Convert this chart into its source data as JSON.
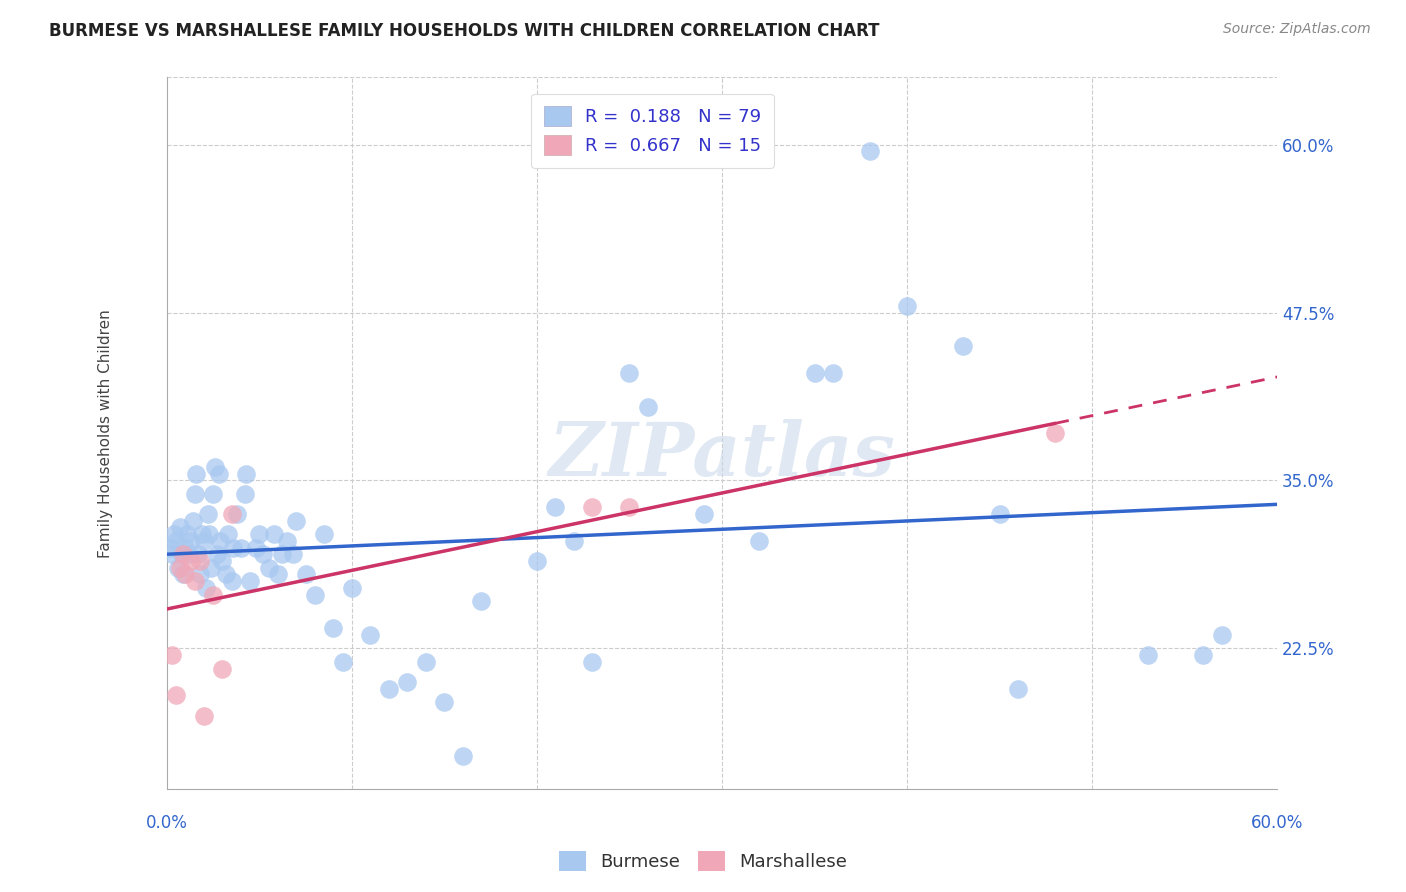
{
  "title": "BURMESE VS MARSHALLESE FAMILY HOUSEHOLDS WITH CHILDREN CORRELATION CHART",
  "source": "Source: ZipAtlas.com",
  "ylabel": "Family Households with Children",
  "watermark": "ZIPatlas",
  "burmese_R": 0.188,
  "burmese_N": 79,
  "marshallese_R": 0.667,
  "marshallese_N": 15,
  "burmese_color": "#a8c8f0",
  "marshallese_color": "#f0a8b8",
  "line_blue": "#3366cc",
  "line_pink": "#cc3366",
  "legend_label_color": "#3333cc",
  "yticks": [
    "22.5%",
    "35.0%",
    "47.5%",
    "60.0%"
  ],
  "ytick_vals": [
    0.225,
    0.35,
    0.475,
    0.6
  ],
  "xlim": [
    0.0,
    0.6
  ],
  "ylim": [
    0.12,
    0.65
  ],
  "burmese_x": [
    0.002,
    0.003,
    0.004,
    0.005,
    0.006,
    0.007,
    0.008,
    0.009,
    0.01,
    0.011,
    0.012,
    0.013,
    0.014,
    0.015,
    0.016,
    0.017,
    0.018,
    0.019,
    0.02,
    0.021,
    0.022,
    0.023,
    0.024,
    0.025,
    0.026,
    0.027,
    0.028,
    0.029,
    0.03,
    0.032,
    0.033,
    0.035,
    0.036,
    0.038,
    0.04,
    0.042,
    0.043,
    0.045,
    0.048,
    0.05,
    0.052,
    0.055,
    0.058,
    0.06,
    0.062,
    0.065,
    0.068,
    0.07,
    0.075,
    0.08,
    0.085,
    0.09,
    0.095,
    0.1,
    0.11,
    0.12,
    0.13,
    0.14,
    0.15,
    0.16,
    0.17,
    0.2,
    0.21,
    0.22,
    0.23,
    0.25,
    0.26,
    0.29,
    0.32,
    0.35,
    0.36,
    0.38,
    0.4,
    0.43,
    0.45,
    0.46,
    0.53,
    0.56,
    0.57
  ],
  "burmese_y": [
    0.3,
    0.295,
    0.31,
    0.305,
    0.285,
    0.315,
    0.295,
    0.28,
    0.3,
    0.31,
    0.295,
    0.305,
    0.32,
    0.34,
    0.355,
    0.295,
    0.28,
    0.31,
    0.305,
    0.27,
    0.325,
    0.31,
    0.285,
    0.34,
    0.36,
    0.295,
    0.355,
    0.305,
    0.29,
    0.28,
    0.31,
    0.275,
    0.3,
    0.325,
    0.3,
    0.34,
    0.355,
    0.275,
    0.3,
    0.31,
    0.295,
    0.285,
    0.31,
    0.28,
    0.295,
    0.305,
    0.295,
    0.32,
    0.28,
    0.265,
    0.31,
    0.24,
    0.215,
    0.27,
    0.235,
    0.195,
    0.2,
    0.215,
    0.185,
    0.145,
    0.26,
    0.29,
    0.33,
    0.305,
    0.215,
    0.43,
    0.405,
    0.325,
    0.305,
    0.43,
    0.43,
    0.595,
    0.48,
    0.45,
    0.325,
    0.195,
    0.22,
    0.22,
    0.235
  ],
  "marshallese_x": [
    0.003,
    0.005,
    0.007,
    0.009,
    0.01,
    0.013,
    0.015,
    0.018,
    0.02,
    0.025,
    0.03,
    0.035,
    0.23,
    0.25,
    0.48
  ],
  "marshallese_y": [
    0.22,
    0.19,
    0.285,
    0.295,
    0.28,
    0.29,
    0.275,
    0.29,
    0.175,
    0.265,
    0.21,
    0.325,
    0.33,
    0.33,
    0.385
  ],
  "grid_color": "#cccccc",
  "spine_color": "#cccccc",
  "title_fontsize": 12,
  "source_fontsize": 10,
  "axis_label_fontsize": 11,
  "tick_label_fontsize": 12,
  "legend_fontsize": 13
}
